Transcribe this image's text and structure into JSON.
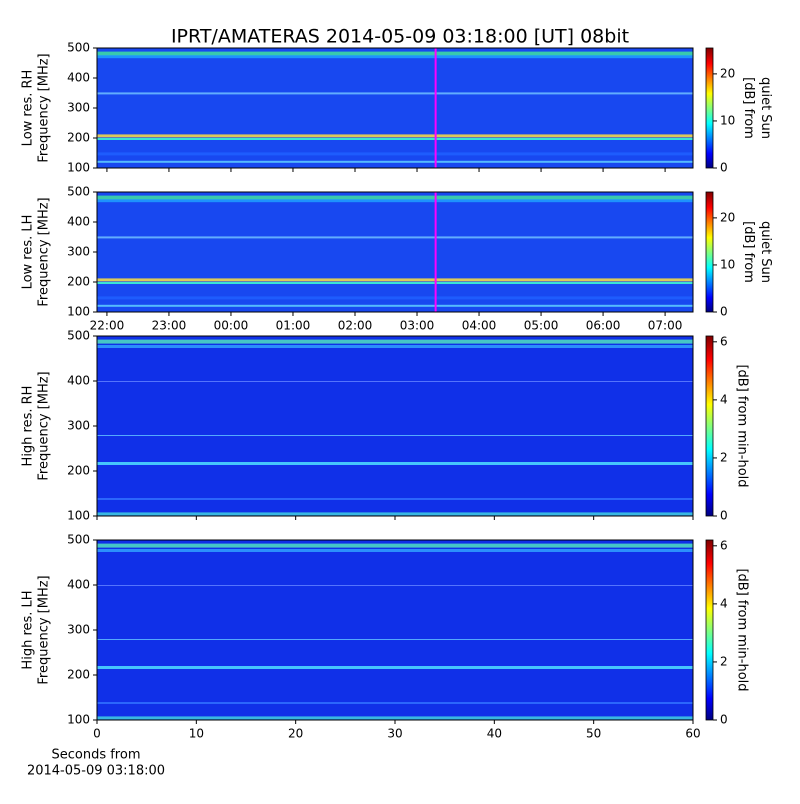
{
  "chart_data": [
    {
      "type": "spectrogram",
      "title": "IPRT/AMATERAS 2014-05-09 03:18:00 [UT]   08bit",
      "ylabel": [
        "Low res. RH",
        "Frequency [MHz]"
      ],
      "xlim": [
        -0.16,
        9.45
      ],
      "ylim": [
        100,
        500
      ],
      "yticks": [
        100,
        200,
        300,
        400,
        500
      ],
      "marker": {
        "x": 5.3,
        "color": "#ff00ff"
      },
      "colorbar": {
        "label": [
          "[dB] from",
          "quiet Sun"
        ],
        "lim": [
          0,
          25.5
        ],
        "ticks": [
          0,
          10,
          20
        ]
      }
    },
    {
      "type": "spectrogram",
      "ylabel": [
        "Low res. LH",
        "Frequency [MHz]"
      ],
      "xlim": [
        -0.16,
        9.45
      ],
      "ylim": [
        100,
        500
      ],
      "yticks": [
        100,
        200,
        300,
        400,
        500
      ],
      "xticks": [
        {
          "value": 0,
          "label": "22:00"
        },
        {
          "value": 1,
          "label": "23:00"
        },
        {
          "value": 2,
          "label": "00:00"
        },
        {
          "value": 3,
          "label": "01:00"
        },
        {
          "value": 4,
          "label": "02:00"
        },
        {
          "value": 5,
          "label": "03:00"
        },
        {
          "value": 6,
          "label": "04:00"
        },
        {
          "value": 7,
          "label": "05:00"
        },
        {
          "value": 8,
          "label": "06:00"
        },
        {
          "value": 9,
          "label": "07:00"
        }
      ],
      "marker": {
        "x": 5.3,
        "color": "#ff00ff"
      },
      "colorbar": {
        "label": [
          "[dB] from",
          "quiet Sun"
        ],
        "lim": [
          0,
          25.5
        ],
        "ticks": [
          0,
          10,
          20
        ]
      }
    },
    {
      "type": "spectrogram",
      "ylabel": [
        "High res. RH",
        "Frequency [MHz]"
      ],
      "xlim": [
        0,
        60
      ],
      "ylim": [
        100,
        500
      ],
      "yticks": [
        100,
        200,
        300,
        400,
        500
      ],
      "colorbar": {
        "label": [
          "[dB] from min-hold"
        ],
        "lim": [
          0,
          6.2
        ],
        "ticks": [
          0,
          2,
          4,
          6
        ]
      }
    },
    {
      "type": "spectrogram",
      "ylabel": [
        "High res. LH",
        "Frequency [MHz]"
      ],
      "xlabel": [
        "Seconds from",
        "2014-05-09 03:18:00"
      ],
      "xlim": [
        0,
        60
      ],
      "ylim": [
        100,
        500
      ],
      "yticks": [
        100,
        200,
        300,
        400,
        500
      ],
      "xticks": [
        0,
        10,
        20,
        30,
        40,
        50,
        60
      ],
      "colorbar": {
        "label": [
          "[dB] from min-hold"
        ],
        "lim": [
          0,
          6.2
        ],
        "ticks": [
          0,
          2,
          4,
          6
        ]
      }
    }
  ]
}
